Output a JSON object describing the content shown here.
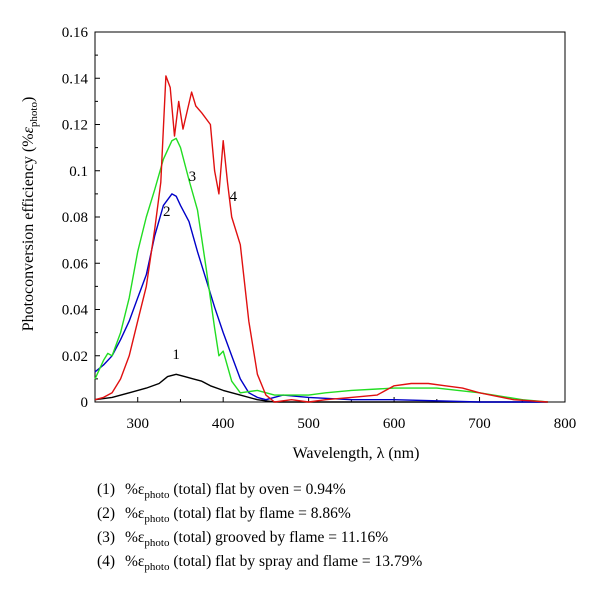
{
  "chart_data": {
    "type": "line",
    "xlabel": "Wavelength, λ (nm)",
    "ylabel": "Photoconversion efficiency (%ε_photo)",
    "xlim": [
      250,
      800
    ],
    "ylim": [
      0,
      0.16
    ],
    "x_ticks": [
      "300",
      "400",
      "500",
      "600",
      "700",
      "800"
    ],
    "y_ticks": [
      "0",
      "0.02",
      "0.04",
      "0.06",
      "0.08",
      "0.1",
      "0.12",
      "0.14",
      "0.16"
    ],
    "grid": false,
    "series": [
      {
        "name": "1",
        "color": "#000000",
        "x": [
          250,
          270,
          290,
          310,
          325,
          335,
          345,
          355,
          365,
          375,
          385,
          400,
          420,
          440,
          460,
          500,
          600,
          700,
          780
        ],
        "y": [
          0.001,
          0.002,
          0.004,
          0.006,
          0.008,
          0.011,
          0.012,
          0.011,
          0.01,
          0.009,
          0.007,
          0.005,
          0.003,
          0.001,
          0.0,
          0.0,
          0.0,
          0.0,
          0.0
        ]
      },
      {
        "name": "2",
        "color": "#0000c8",
        "x": [
          250,
          260,
          270,
          280,
          290,
          300,
          310,
          320,
          330,
          340,
          345,
          350,
          360,
          370,
          380,
          390,
          400,
          410,
          420,
          430,
          440,
          450,
          470,
          500,
          550,
          600,
          700,
          780
        ],
        "y": [
          0.013,
          0.016,
          0.02,
          0.027,
          0.035,
          0.045,
          0.055,
          0.072,
          0.085,
          0.09,
          0.089,
          0.085,
          0.078,
          0.065,
          0.053,
          0.041,
          0.03,
          0.02,
          0.01,
          0.004,
          0.002,
          0.001,
          0.003,
          0.002,
          0.001,
          0.001,
          0.0,
          0.0
        ]
      },
      {
        "name": "3",
        "color": "#22dd22",
        "x": [
          250,
          260,
          265,
          270,
          280,
          290,
          300,
          310,
          320,
          330,
          340,
          345,
          350,
          360,
          370,
          380,
          390,
          395,
          400,
          410,
          420,
          440,
          460,
          500,
          520,
          550,
          600,
          650,
          700,
          750,
          780
        ],
        "y": [
          0.01,
          0.018,
          0.021,
          0.02,
          0.03,
          0.045,
          0.065,
          0.08,
          0.092,
          0.105,
          0.113,
          0.114,
          0.11,
          0.096,
          0.083,
          0.058,
          0.032,
          0.02,
          0.022,
          0.009,
          0.004,
          0.005,
          0.003,
          0.003,
          0.004,
          0.005,
          0.006,
          0.006,
          0.004,
          0.001,
          0.0
        ]
      },
      {
        "name": "4",
        "color": "#e01010",
        "x": [
          250,
          260,
          270,
          280,
          290,
          300,
          310,
          320,
          327,
          333,
          338,
          343,
          348,
          353,
          358,
          363,
          368,
          375,
          385,
          390,
          395,
          400,
          405,
          410,
          420,
          430,
          440,
          450,
          460,
          480,
          500,
          520,
          550,
          580,
          600,
          620,
          640,
          660,
          680,
          700,
          740,
          780
        ],
        "y": [
          0.001,
          0.002,
          0.004,
          0.01,
          0.02,
          0.035,
          0.05,
          0.075,
          0.095,
          0.141,
          0.136,
          0.115,
          0.13,
          0.118,
          0.126,
          0.134,
          0.128,
          0.125,
          0.12,
          0.1,
          0.09,
          0.113,
          0.095,
          0.08,
          0.068,
          0.035,
          0.012,
          0.003,
          0.0,
          0.001,
          0.0,
          0.001,
          0.002,
          0.003,
          0.007,
          0.008,
          0.008,
          0.007,
          0.006,
          0.004,
          0.001,
          0.0
        ]
      }
    ],
    "curve_labels": [
      {
        "text": "1",
        "x": 345,
        "y": 0.0185
      },
      {
        "text": "2",
        "x": 334,
        "y": 0.0805
      },
      {
        "text": "3",
        "x": 364,
        "y": 0.0955
      },
      {
        "text": "4",
        "x": 412,
        "y": 0.087
      }
    ],
    "legend": [
      {
        "num": "(1)",
        "pre": "%ε",
        "sub": "photo",
        "post": " (total) flat by oven = 0.94%"
      },
      {
        "num": "(2)",
        "pre": "%ε",
        "sub": "photo",
        "post": " (total) flat by flame = 8.86%"
      },
      {
        "num": "(3)",
        "pre": "%ε",
        "sub": "photo",
        "post": " (total) grooved by flame = 11.16%"
      },
      {
        "num": "(4)",
        "pre": "%ε",
        "sub": "photo",
        "post": " (total) flat by spray and flame = 13.79%"
      }
    ]
  }
}
